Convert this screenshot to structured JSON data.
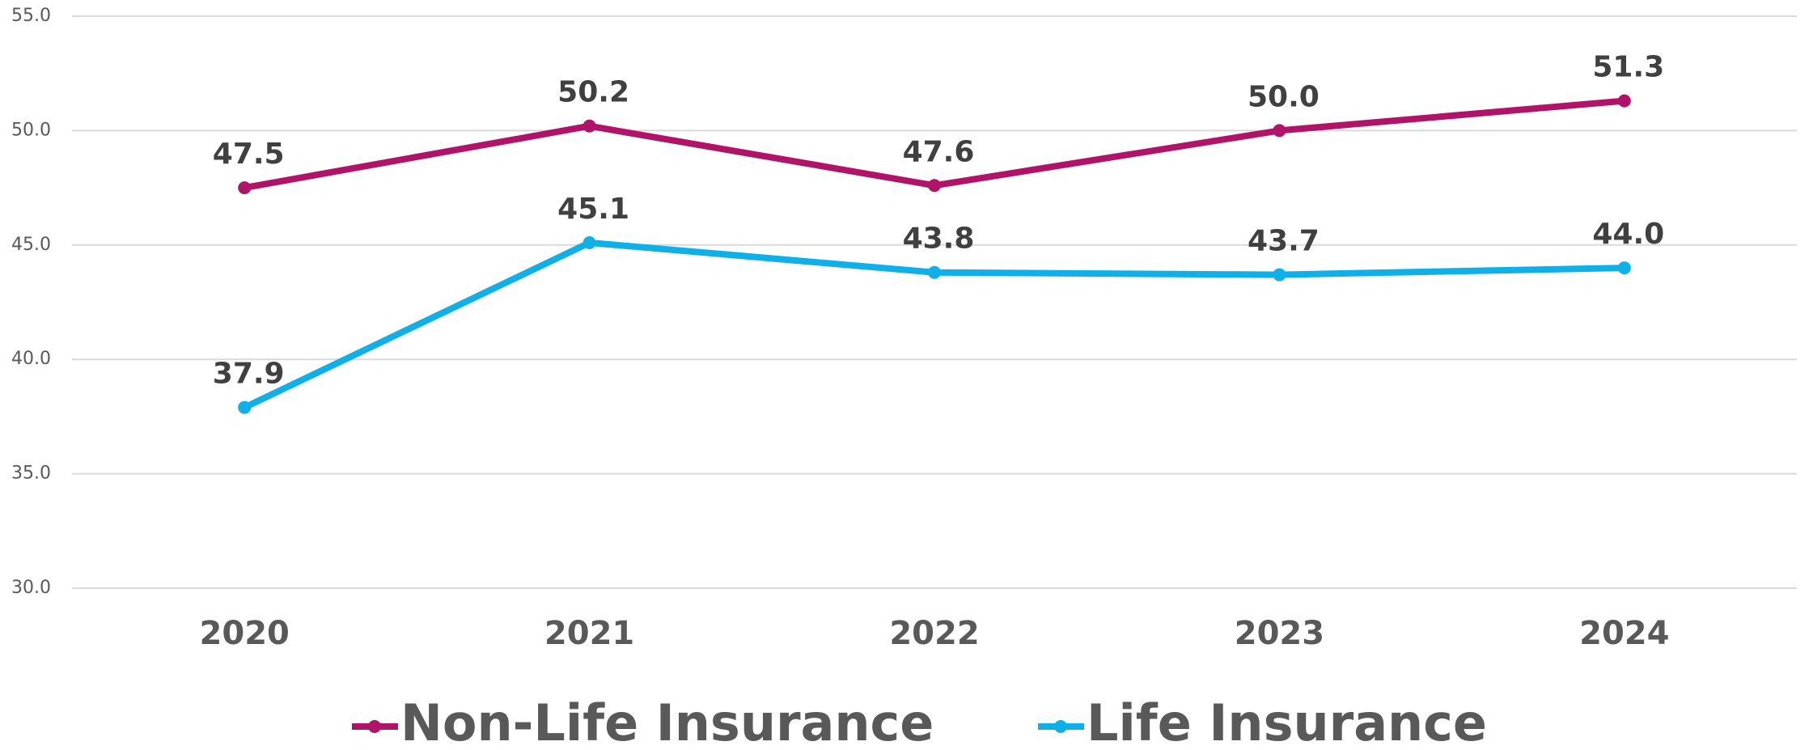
{
  "chart_data": {
    "type": "line",
    "categories": [
      "2020",
      "2021",
      "2022",
      "2023",
      "2024"
    ],
    "series": [
      {
        "name": "Non-Life Insurance",
        "color": "#b01469",
        "values": [
          47.5,
          50.2,
          47.6,
          50.0,
          51.3
        ],
        "value_labels": [
          "47.5",
          "50.2",
          "47.6",
          "50.0",
          "51.3"
        ]
      },
      {
        "name": "Life Insurance",
        "color": "#0fb0e8",
        "values": [
          37.9,
          45.1,
          43.8,
          43.7,
          44.0
        ],
        "value_labels": [
          "37.9",
          "45.1",
          "43.8",
          "43.7",
          "44.0"
        ]
      }
    ],
    "ylim": [
      30,
      55
    ],
    "yticks": [
      {
        "value": 30,
        "label": "30.0"
      },
      {
        "value": 35,
        "label": "35.0"
      },
      {
        "value": 40,
        "label": "40.0"
      },
      {
        "value": 45,
        "label": "45.0"
      },
      {
        "value": 50,
        "label": "50.0"
      },
      {
        "value": 55,
        "label": "55.0"
      }
    ],
    "grid": true,
    "legend": "bottom"
  }
}
